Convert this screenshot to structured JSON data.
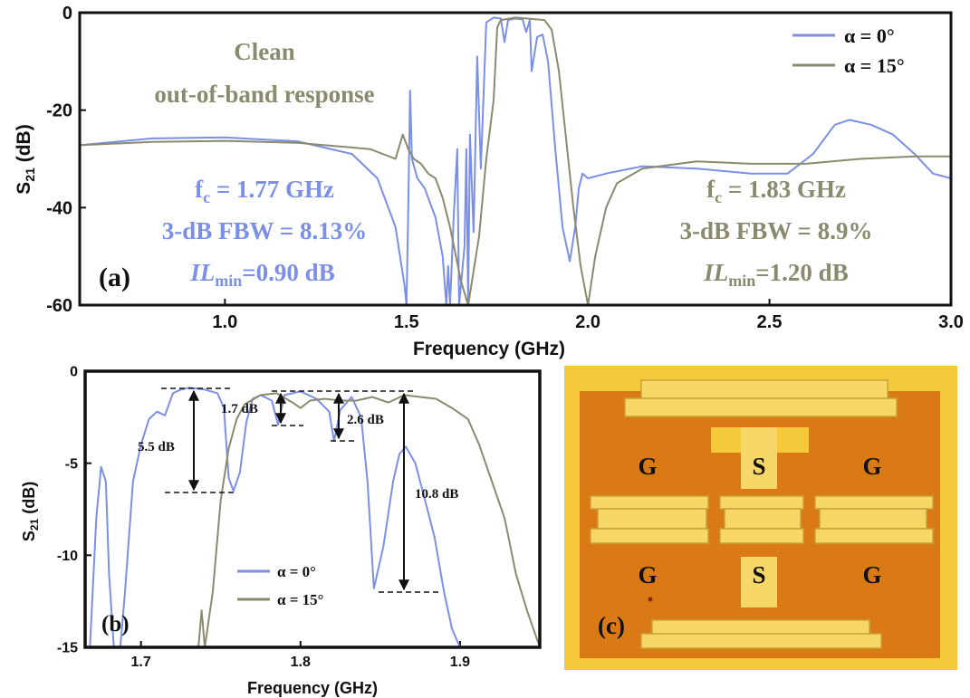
{
  "chart_data": [
    {
      "panel": "(a)",
      "type": "line",
      "xlabel": "Frequency (GHz)",
      "ylabel_main": "S",
      "ylabel_sub": "21",
      "ylabel_unit": " (dB)",
      "xlim": [
        0.6,
        3.0
      ],
      "ylim": [
        -60,
        0
      ],
      "xticks": [
        "1.0",
        "1.5",
        "2.0",
        "2.5",
        "3.0"
      ],
      "yticks": [
        "0",
        "-20",
        "-40",
        "-60"
      ],
      "legend_position": "top-right",
      "series": [
        {
          "name": "α = 0°",
          "color": "#7b8fe6",
          "points": [
            [
              0.6,
              -27.2
            ],
            [
              0.8,
              -25.8
            ],
            [
              1.0,
              -25.6
            ],
            [
              1.2,
              -26.4
            ],
            [
              1.35,
              -29
            ],
            [
              1.42,
              -34
            ],
            [
              1.47,
              -44
            ],
            [
              1.495,
              -56
            ],
            [
              1.5,
              -60
            ],
            [
              1.505,
              -40
            ],
            [
              1.51,
              -16
            ],
            [
              1.515,
              -30
            ],
            [
              1.53,
              -34
            ],
            [
              1.55,
              -36
            ],
            [
              1.58,
              -42
            ],
            [
              1.6,
              -50
            ],
            [
              1.61,
              -60
            ],
            [
              1.615,
              -52
            ],
            [
              1.62,
              -60
            ],
            [
              1.63,
              -42
            ],
            [
              1.64,
              -28
            ],
            [
              1.645,
              -60
            ],
            [
              1.66,
              -48
            ],
            [
              1.665,
              -28
            ],
            [
              1.67,
              -60
            ],
            [
              1.675,
              -25
            ],
            [
              1.685,
              -45
            ],
            [
              1.695,
              -9
            ],
            [
              1.705,
              -32
            ],
            [
              1.72,
              -2
            ],
            [
              1.73,
              -1.5
            ],
            [
              1.74,
              -1
            ],
            [
              1.76,
              -1.2
            ],
            [
              1.77,
              -6
            ],
            [
              1.78,
              -1.5
            ],
            [
              1.8,
              -1.2
            ],
            [
              1.82,
              -1.4
            ],
            [
              1.83,
              -4
            ],
            [
              1.84,
              -1.5
            ],
            [
              1.845,
              -12
            ],
            [
              1.86,
              -5
            ],
            [
              1.875,
              -4.5
            ],
            [
              1.89,
              -10
            ],
            [
              1.91,
              -28
            ],
            [
              1.93,
              -44
            ],
            [
              1.95,
              -51
            ],
            [
              1.965,
              -44
            ],
            [
              1.975,
              -36
            ],
            [
              1.985,
              -33
            ],
            [
              2.0,
              -34
            ],
            [
              2.05,
              -33
            ],
            [
              2.15,
              -31.5
            ],
            [
              2.3,
              -32
            ],
            [
              2.45,
              -33
            ],
            [
              2.55,
              -33
            ],
            [
              2.62,
              -29
            ],
            [
              2.68,
              -23
            ],
            [
              2.72,
              -22
            ],
            [
              2.78,
              -23
            ],
            [
              2.84,
              -25
            ],
            [
              2.9,
              -29
            ],
            [
              2.95,
              -33
            ],
            [
              3.0,
              -34
            ]
          ]
        },
        {
          "name": "α = 15°",
          "color": "#8a8a6e",
          "points": [
            [
              0.6,
              -27.2
            ],
            [
              0.8,
              -26.5
            ],
            [
              1.0,
              -26.3
            ],
            [
              1.2,
              -26.7
            ],
            [
              1.4,
              -28
            ],
            [
              1.47,
              -30
            ],
            [
              1.49,
              -25
            ],
            [
              1.505,
              -28
            ],
            [
              1.52,
              -30
            ],
            [
              1.54,
              -31
            ],
            [
              1.56,
              -33
            ],
            [
              1.58,
              -34
            ],
            [
              1.6,
              -38
            ],
            [
              1.62,
              -44
            ],
            [
              1.65,
              -55
            ],
            [
              1.67,
              -60
            ],
            [
              1.7,
              -46
            ],
            [
              1.72,
              -30
            ],
            [
              1.74,
              -18
            ],
            [
              1.75,
              -3
            ],
            [
              1.76,
              -1.5
            ],
            [
              1.8,
              -1
            ],
            [
              1.88,
              -1.5
            ],
            [
              1.9,
              -3.5
            ],
            [
              1.92,
              -12
            ],
            [
              1.94,
              -26
            ],
            [
              1.96,
              -40
            ],
            [
              1.98,
              -52
            ],
            [
              2.0,
              -60
            ],
            [
              2.02,
              -50
            ],
            [
              2.05,
              -40
            ],
            [
              2.08,
              -35
            ],
            [
              2.15,
              -32
            ],
            [
              2.3,
              -30.5
            ],
            [
              2.45,
              -31
            ],
            [
              2.6,
              -31
            ],
            [
              2.75,
              -30
            ],
            [
              2.9,
              -29.5
            ],
            [
              3.0,
              -29.5
            ]
          ]
        }
      ],
      "annotations": {
        "clean_1": "Clean",
        "clean_2": "out-of-band response",
        "blue_fc_main": "f",
        "blue_fc_sub": "c",
        "blue_fc_rest": " = 1.77 GHz",
        "blue_fbw": "3-dB FBW = 8.13%",
        "blue_il_main": "IL",
        "blue_il_sub": "min",
        "blue_il_rest": "=0.90 dB",
        "olive_fc_main": "f",
        "olive_fc_sub": "c",
        "olive_fc_rest": " = 1.83 GHz",
        "olive_fbw": "3-dB FBW = 8.9%",
        "olive_il_main": "IL",
        "olive_il_sub": "min",
        "olive_il_rest": "=1.20 dB"
      }
    },
    {
      "panel": "(b)",
      "type": "line",
      "xlabel": "Frequency (GHz)",
      "ylabel_main": "S",
      "ylabel_sub": "21",
      "ylabel_unit": " (dB)",
      "xlim": [
        1.665,
        1.95
      ],
      "ylim": [
        -15,
        0
      ],
      "xticks": [
        "1.7",
        "1.8",
        "1.9"
      ],
      "yticks": [
        "0",
        "-5",
        "-10",
        "-15"
      ],
      "legend_position": "bottom-left",
      "series": [
        {
          "name": "α = 0°",
          "color": "#7b8fe6",
          "points": [
            [
              1.668,
              -15
            ],
            [
              1.672,
              -8
            ],
            [
              1.675,
              -5.2
            ],
            [
              1.678,
              -6
            ],
            [
              1.68,
              -11
            ],
            [
              1.683,
              -15
            ],
            [
              1.687,
              -15
            ],
            [
              1.69,
              -12
            ],
            [
              1.695,
              -6
            ],
            [
              1.7,
              -4
            ],
            [
              1.705,
              -2.6
            ],
            [
              1.71,
              -2.2
            ],
            [
              1.715,
              -2.4
            ],
            [
              1.72,
              -1.2
            ],
            [
              1.725,
              -1.0
            ],
            [
              1.73,
              -0.9
            ],
            [
              1.74,
              -1.0
            ],
            [
              1.748,
              -1.2
            ],
            [
              1.752,
              -2
            ],
            [
              1.755,
              -5.8
            ],
            [
              1.758,
              -6.5
            ],
            [
              1.762,
              -5.5
            ],
            [
              1.766,
              -2.8
            ],
            [
              1.77,
              -1.5
            ],
            [
              1.775,
              -1.3
            ],
            [
              1.782,
              -1.6
            ],
            [
              1.786,
              -2.9
            ],
            [
              1.79,
              -1.3
            ],
            [
              1.8,
              -1.1
            ],
            [
              1.81,
              -1.5
            ],
            [
              1.818,
              -2.2
            ],
            [
              1.821,
              -3.8
            ],
            [
              1.825,
              -2.1
            ],
            [
              1.832,
              -1.4
            ],
            [
              1.838,
              -2.5
            ],
            [
              1.842,
              -6
            ],
            [
              1.846,
              -11.8
            ],
            [
              1.852,
              -9.5
            ],
            [
              1.858,
              -6
            ],
            [
              1.862,
              -4.5
            ],
            [
              1.866,
              -4.1
            ],
            [
              1.872,
              -5
            ],
            [
              1.878,
              -7
            ],
            [
              1.884,
              -9
            ],
            [
              1.89,
              -12
            ],
            [
              1.895,
              -14
            ],
            [
              1.9,
              -15
            ]
          ]
        },
        {
          "name": "α = 15°",
          "color": "#8a8a6e",
          "points": [
            [
              1.736,
              -15
            ],
            [
              1.738,
              -13
            ],
            [
              1.74,
              -15
            ],
            [
              1.745,
              -12
            ],
            [
              1.75,
              -7
            ],
            [
              1.755,
              -4.2
            ],
            [
              1.76,
              -2.6
            ],
            [
              1.765,
              -1.8
            ],
            [
              1.775,
              -1.3
            ],
            [
              1.785,
              -1.2
            ],
            [
              1.795,
              -1.7
            ],
            [
              1.8,
              -2.0
            ],
            [
              1.806,
              -1.6
            ],
            [
              1.815,
              -1.5
            ],
            [
              1.825,
              -1.6
            ],
            [
              1.835,
              -1.6
            ],
            [
              1.845,
              -1.4
            ],
            [
              1.855,
              -1.7
            ],
            [
              1.865,
              -1.3
            ],
            [
              1.875,
              -1.4
            ],
            [
              1.885,
              -1.5
            ],
            [
              1.895,
              -2.0
            ],
            [
              1.905,
              -2.6
            ],
            [
              1.912,
              -4
            ],
            [
              1.92,
              -6
            ],
            [
              1.928,
              -8
            ],
            [
              1.935,
              -11
            ],
            [
              1.942,
              -13
            ],
            [
              1.95,
              -15
            ]
          ]
        }
      ],
      "annotations": {
        "d1": "5.5 dB",
        "d2": "1.7 dB",
        "d3": "2.6 dB",
        "d4": "10.8 dB"
      }
    }
  ],
  "panel_c": {
    "label": "(c)",
    "pads": [
      "G",
      "S",
      "G",
      "G",
      "S",
      "G"
    ],
    "colors": {
      "substrate": "#f5c93a",
      "metal": "#d97a14",
      "resonator": "#f6d768"
    }
  }
}
